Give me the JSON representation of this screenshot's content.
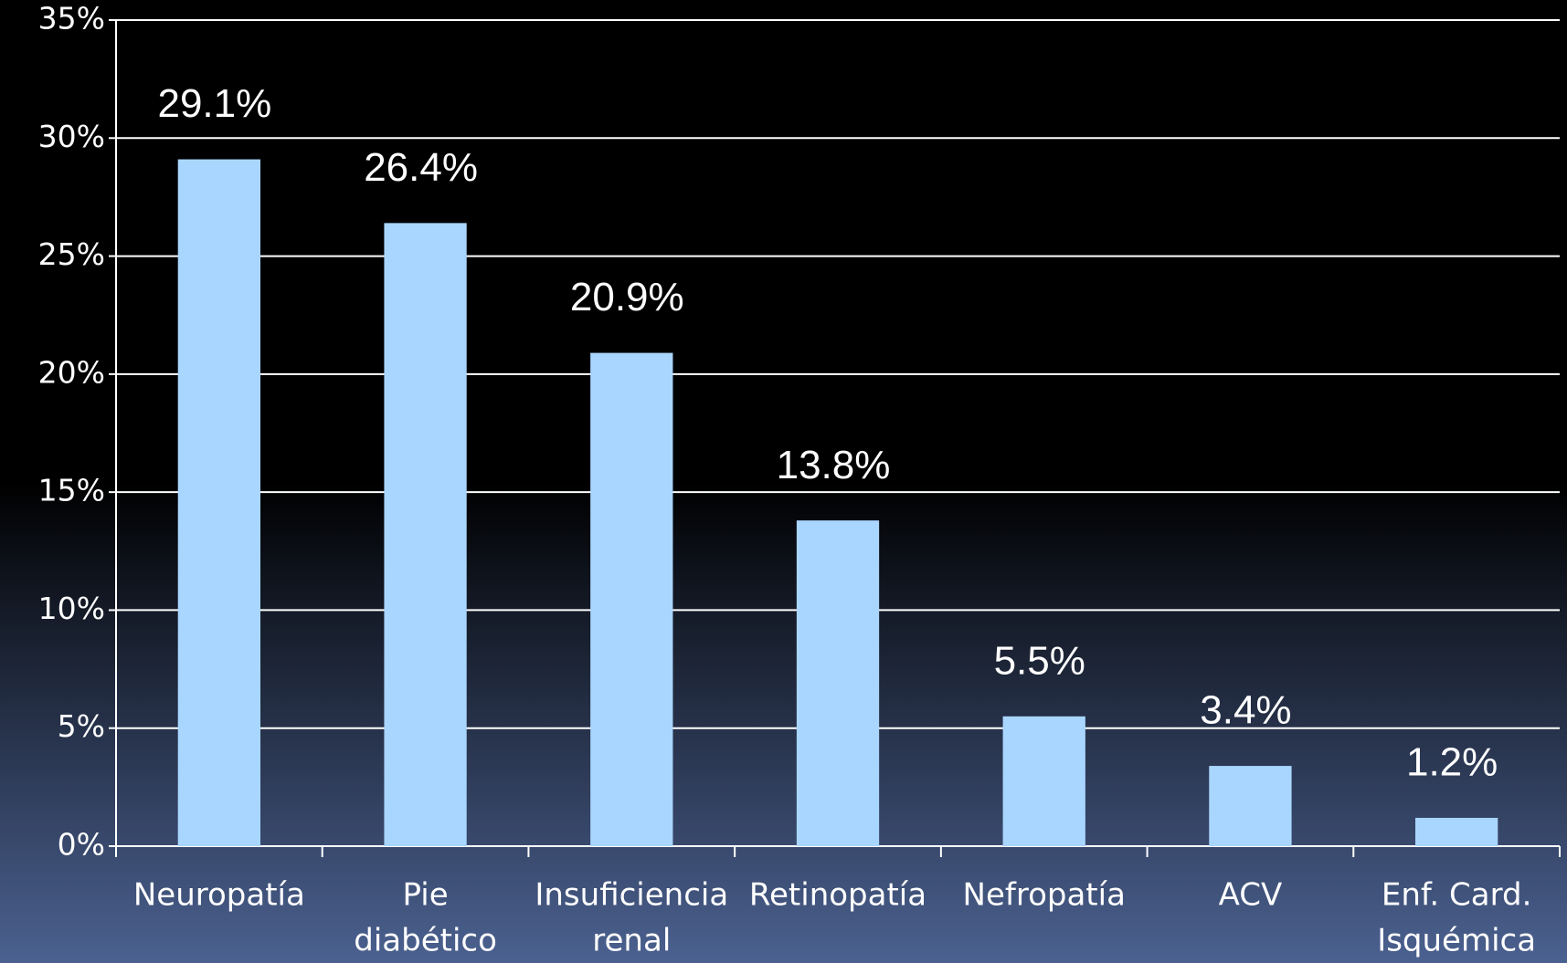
{
  "chart_data": {
    "type": "bar",
    "categories": [
      [
        "Neuropatía"
      ],
      [
        "Pie",
        "diabético"
      ],
      [
        "Insuficiencia",
        "renal"
      ],
      [
        "Retinopatía"
      ],
      [
        "Nefropatía"
      ],
      [
        "ACV"
      ],
      [
        "Enf. Card.",
        "Isquémica"
      ]
    ],
    "values": [
      29.1,
      26.4,
      20.9,
      13.8,
      5.5,
      3.4,
      1.2
    ],
    "value_labels": [
      "29.1%",
      "26.4%",
      "20.9%",
      "13.8%",
      "5.5%",
      "3.4%",
      "1.2%"
    ],
    "color": "#a9d6ff",
    "ylim": [
      0,
      35
    ],
    "yticks": [
      {
        "value": 0,
        "label": "0%"
      },
      {
        "value": 5,
        "label": "5%"
      },
      {
        "value": 10,
        "label": "10%"
      },
      {
        "value": 15,
        "label": "15%"
      },
      {
        "value": 20,
        "label": "20%"
      },
      {
        "value": 25,
        "label": "25%"
      },
      {
        "value": 30,
        "label": "30%"
      },
      {
        "value": 35,
        "label": "35%"
      }
    ],
    "grid": true
  }
}
